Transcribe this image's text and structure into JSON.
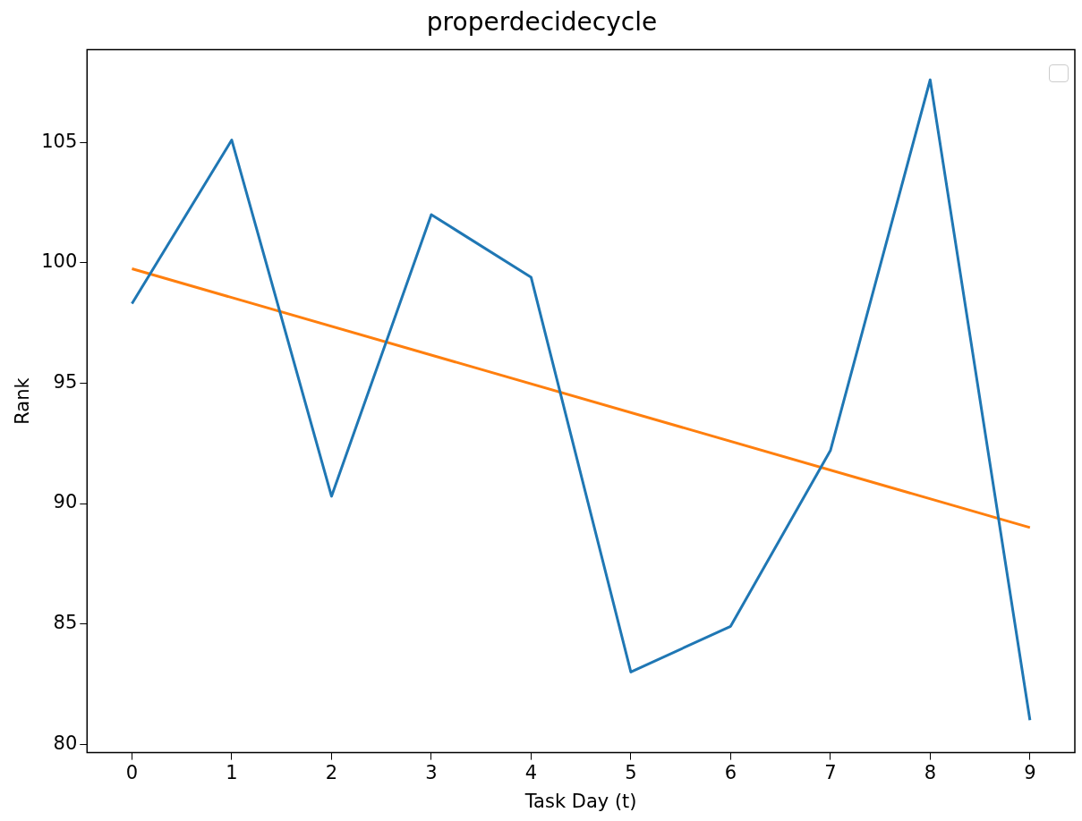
{
  "chart_data": {
    "type": "line",
    "title": "properdecidecycle",
    "xlabel": "Task Day (t)",
    "ylabel": "Rank",
    "x": [
      0,
      1,
      2,
      3,
      4,
      5,
      6,
      7,
      8,
      9
    ],
    "series": [
      {
        "color": "#1f77b4",
        "values": [
          98.3,
          105.1,
          90.3,
          102.0,
          99.4,
          83.0,
          84.9,
          92.2,
          107.6,
          81.0
        ]
      },
      {
        "type": "line",
        "color": "#ff7f0e",
        "x": [
          0,
          9
        ],
        "values": [
          99.75,
          89.0
        ]
      }
    ],
    "xlim": [
      -0.45,
      9.45
    ],
    "xticks": [
      0,
      1,
      2,
      3,
      4,
      5,
      6,
      7,
      8,
      9
    ],
    "ylim": [
      79.65,
      108.85
    ],
    "yticks": [
      80,
      85,
      90,
      95,
      100,
      105
    ],
    "grid": false
  }
}
